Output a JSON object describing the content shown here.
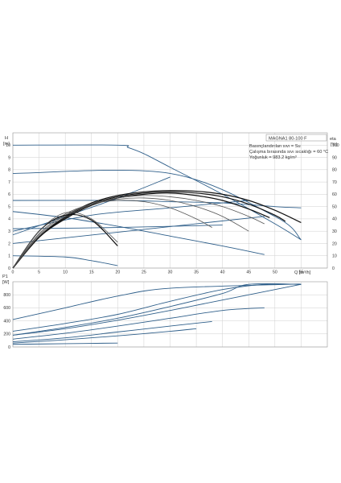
{
  "colors": {
    "blue": "#2f5f8a",
    "black": "#111111",
    "gray": "#555555",
    "grid": "#cfcfcf"
  },
  "info_box": {
    "model": "MAGNA1 80-100 F",
    "line1": "Basınçlandırılan sıvı = Su",
    "line2": "Çalışma bırasında sıvı sıcaklığı = 60 °C",
    "line3": "Yoğunluk = 983.2 kg/m³"
  },
  "chart_data": [
    {
      "type": "line",
      "title": "",
      "y_label_symbol": "H",
      "y_label_unit": "[m]",
      "y2_label_symbol": "eta",
      "y2_label_unit": "[%]",
      "x_label": "Q [m³/h]",
      "xlim": [
        0,
        60
      ],
      "ylim": [
        0,
        11
      ],
      "y2lim": [
        0,
        110
      ],
      "x_ticks": [
        0,
        5,
        10,
        15,
        20,
        25,
        30,
        35,
        40,
        45,
        50,
        55
      ],
      "y_ticks": [
        0,
        1,
        2,
        3,
        4,
        5,
        6,
        7,
        8,
        9,
        10
      ],
      "y2_ticks": [
        0,
        10,
        20,
        30,
        40,
        50,
        60,
        70,
        80,
        90,
        100
      ],
      "grid": true,
      "head_curves": [
        {
          "x": [
            0,
            20,
            22,
            25,
            30,
            40,
            50,
            55
          ],
          "y": [
            10,
            10,
            9.8,
            9.3,
            8.2,
            6.0,
            3.6,
            2.3
          ]
        },
        {
          "x": [
            0,
            30,
            50,
            55
          ],
          "y": [
            7.7,
            7.7,
            4.2,
            2.3
          ]
        },
        {
          "x": [
            0,
            20,
            30,
            40,
            50,
            55
          ],
          "y": [
            5.5,
            5.5,
            5.4,
            5.3,
            5.0,
            4.9
          ]
        },
        {
          "x": [
            0,
            48
          ],
          "y": [
            2.0,
            4.2
          ]
        },
        {
          "x": [
            0,
            20,
            40
          ],
          "y": [
            3.2,
            3.3,
            3.5
          ]
        },
        {
          "x": [
            0,
            10,
            20,
            30,
            40,
            48
          ],
          "y": [
            4.6,
            4.1,
            3.4,
            2.6,
            1.8,
            1.1
          ]
        },
        {
          "x": [
            0,
            10,
            15,
            20
          ],
          "y": [
            1.0,
            0.9,
            0.6,
            0.2
          ]
        },
        {
          "x": [
            0,
            10,
            20,
            30
          ],
          "y": [
            2.7,
            4.2,
            5.7,
            7.4
          ]
        },
        {
          "x": [
            0,
            15,
            30,
            45
          ],
          "y": [
            3.0,
            4.3,
            4.9,
            5.5
          ]
        }
      ],
      "efficiency_curves": [
        {
          "color": "black",
          "x": [
            0,
            5,
            10,
            15,
            20,
            25,
            30,
            35,
            40,
            45,
            50,
            55
          ],
          "y": [
            0,
            25,
            42,
            53,
            59,
            62,
            63,
            62.5,
            60,
            55,
            47,
            37
          ]
        },
        {
          "color": "black",
          "x": [
            0,
            5,
            10,
            15,
            20,
            25,
            30,
            35,
            40,
            45,
            50,
            52
          ],
          "y": [
            0,
            25,
            41,
            52,
            58,
            61,
            62,
            61,
            58,
            52,
            43,
            38
          ]
        },
        {
          "color": "black",
          "x": [
            0,
            5,
            10,
            15,
            20,
            25,
            30,
            35,
            40,
            45,
            49
          ],
          "y": [
            0,
            25,
            40,
            51,
            57,
            60,
            61,
            59,
            55,
            48,
            41
          ]
        },
        {
          "color": "gray",
          "x": [
            0,
            5,
            10,
            15,
            20,
            25,
            30,
            35,
            40,
            45,
            48
          ],
          "y": [
            0,
            26,
            42,
            52,
            57,
            59,
            58,
            55,
            50,
            42,
            36
          ]
        },
        {
          "color": "gray",
          "x": [
            0,
            5,
            10,
            15,
            20,
            25,
            30,
            35,
            40,
            45
          ],
          "y": [
            0,
            27,
            43,
            52,
            56,
            57,
            55,
            50,
            42,
            30
          ]
        },
        {
          "color": "gray",
          "x": [
            0,
            5,
            10,
            15,
            20,
            25,
            30,
            35,
            38
          ],
          "y": [
            0,
            28,
            44,
            52,
            55,
            54,
            49,
            40,
            33
          ]
        },
        {
          "color": "black",
          "x": [
            0,
            5,
            10,
            15,
            20
          ],
          "y": [
            0,
            30,
            43,
            39,
            18
          ]
        },
        {
          "color": "gray",
          "x": [
            0,
            5,
            10,
            15,
            20
          ],
          "y": [
            0,
            30,
            45,
            40,
            21
          ]
        }
      ]
    },
    {
      "type": "line",
      "title": "",
      "y_label_symbol": "P1",
      "y_label_unit": "[W]",
      "xlim": [
        0,
        60
      ],
      "ylim": [
        0,
        1000
      ],
      "y_ticks": [
        0,
        200,
        400,
        600,
        800
      ],
      "grid": true,
      "power_curves": [
        {
          "x": [
            0,
            10,
            20,
            30,
            52,
            55
          ],
          "y": [
            420,
            600,
            780,
            900,
            960,
            960
          ]
        },
        {
          "x": [
            0,
            10,
            20,
            30,
            40,
            48,
            55
          ],
          "y": [
            240,
            360,
            500,
            700,
            880,
            960,
            960
          ]
        },
        {
          "x": [
            0,
            10,
            20,
            30,
            40,
            45,
            55
          ],
          "y": [
            180,
            300,
            440,
            620,
            820,
            960,
            960
          ]
        },
        {
          "x": [
            0,
            10,
            20,
            30,
            40,
            55
          ],
          "y": [
            180,
            280,
            410,
            560,
            720,
            960
          ]
        },
        {
          "x": [
            0,
            10,
            20,
            30,
            40,
            48
          ],
          "y": [
            120,
            210,
            320,
            440,
            560,
            600
          ]
        },
        {
          "x": [
            0,
            10,
            20,
            30,
            38
          ],
          "y": [
            80,
            140,
            230,
            320,
            390
          ]
        },
        {
          "x": [
            0,
            10,
            20,
            30,
            35
          ],
          "y": [
            60,
            110,
            170,
            240,
            280
          ]
        },
        {
          "x": [
            0,
            10,
            20
          ],
          "y": [
            40,
            50,
            60
          ]
        }
      ]
    }
  ]
}
